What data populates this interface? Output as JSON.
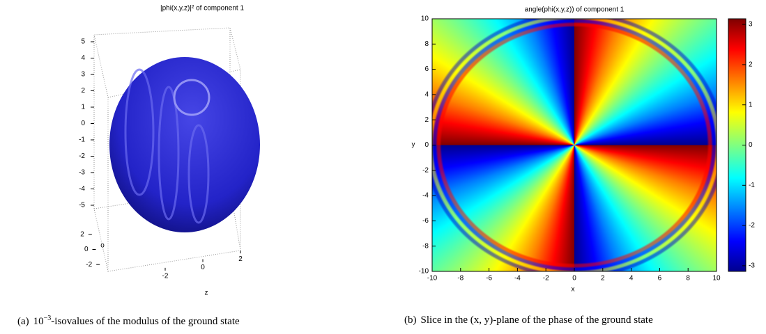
{
  "chart_data": [
    {
      "type": "surface3d",
      "title": "|phi(x,y,z)|² of component 1",
      "zlim": [
        -5,
        5
      ],
      "zticks": [
        -5,
        -4,
        -3,
        -2,
        -1,
        0,
        1,
        2,
        3,
        4,
        5
      ],
      "ylabel": "o",
      "ylim": [
        -3,
        3
      ],
      "yticks": [
        -2,
        0,
        2
      ],
      "xlabel": "z",
      "xlim": [
        -3,
        3
      ],
      "xticks": [
        -2,
        0,
        2
      ],
      "color": "#2323c8"
    },
    {
      "type": "heatmap",
      "title": "angle(phi(x,y,z)) of component 1",
      "xlabel": "x",
      "xlim": [
        -10,
        10
      ],
      "xticks": [
        -10,
        -8,
        -6,
        -4,
        -2,
        0,
        2,
        4,
        6,
        8,
        10
      ],
      "ylabel": "y",
      "ylim": [
        -10,
        10
      ],
      "yticks": [
        -10,
        -8,
        -6,
        -4,
        -2,
        0,
        2,
        4,
        6,
        8,
        10
      ],
      "colorbar": {
        "lim": [
          -3.14,
          3.14
        ],
        "ticks": [
          -3,
          -2,
          -1,
          0,
          1,
          2,
          3
        ]
      }
    }
  ],
  "captions": [
    {
      "label": "(a)",
      "base": "10",
      "exponent": "−3",
      "text": "-isovalues of the modulus of the ground state"
    },
    {
      "label": "(b)",
      "text": "Slice in the (x, y)-plane of the phase of the ground state"
    }
  ]
}
